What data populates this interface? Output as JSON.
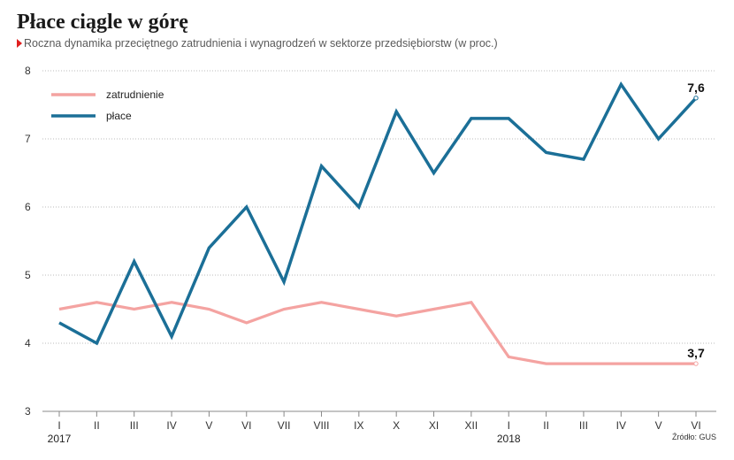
{
  "title": "Płace ciągle w górę",
  "subtitle": "Roczna dynamika przeciętnego zatrudnienia i wynagrodzeń w sektorze przedsiębiorstw (w proc.)",
  "source": "Źródło: GUS",
  "colors": {
    "zatrudnienie": "#f4a3a1",
    "place": "#1b6f97",
    "subtitle_marker": "#e0201f",
    "grid": "#bbbbbb"
  },
  "chart_data": {
    "type": "line",
    "categories": [
      "I",
      "II",
      "III",
      "IV",
      "V",
      "VI",
      "VII",
      "VIII",
      "IX",
      "X",
      "XI",
      "XII",
      "I",
      "II",
      "III",
      "IV",
      "V",
      "VI"
    ],
    "year_labels": [
      {
        "index": 0,
        "label": "2017"
      },
      {
        "index": 12,
        "label": "2018"
      }
    ],
    "yticks": [
      3,
      4,
      5,
      6,
      7,
      8
    ],
    "ylim": [
      3,
      8
    ],
    "grid": "horizontal dotted",
    "legend_position": "top-left",
    "series": [
      {
        "name": "zatrudnienie",
        "color": "#f4a3a1",
        "values": [
          4.5,
          4.6,
          4.5,
          4.6,
          4.5,
          4.3,
          4.5,
          4.6,
          4.5,
          4.4,
          4.5,
          4.6,
          3.8,
          3.7,
          3.7,
          3.7,
          3.7,
          3.7
        ],
        "end_label": "3,7"
      },
      {
        "name": "płace",
        "color": "#1b6f97",
        "values": [
          4.3,
          4.0,
          5.2,
          4.1,
          5.4,
          6.0,
          4.9,
          6.6,
          6.0,
          7.4,
          6.5,
          7.3,
          7.3,
          6.8,
          6.7,
          7.8,
          7.0,
          7.6
        ],
        "end_label": "7,6"
      }
    ]
  }
}
